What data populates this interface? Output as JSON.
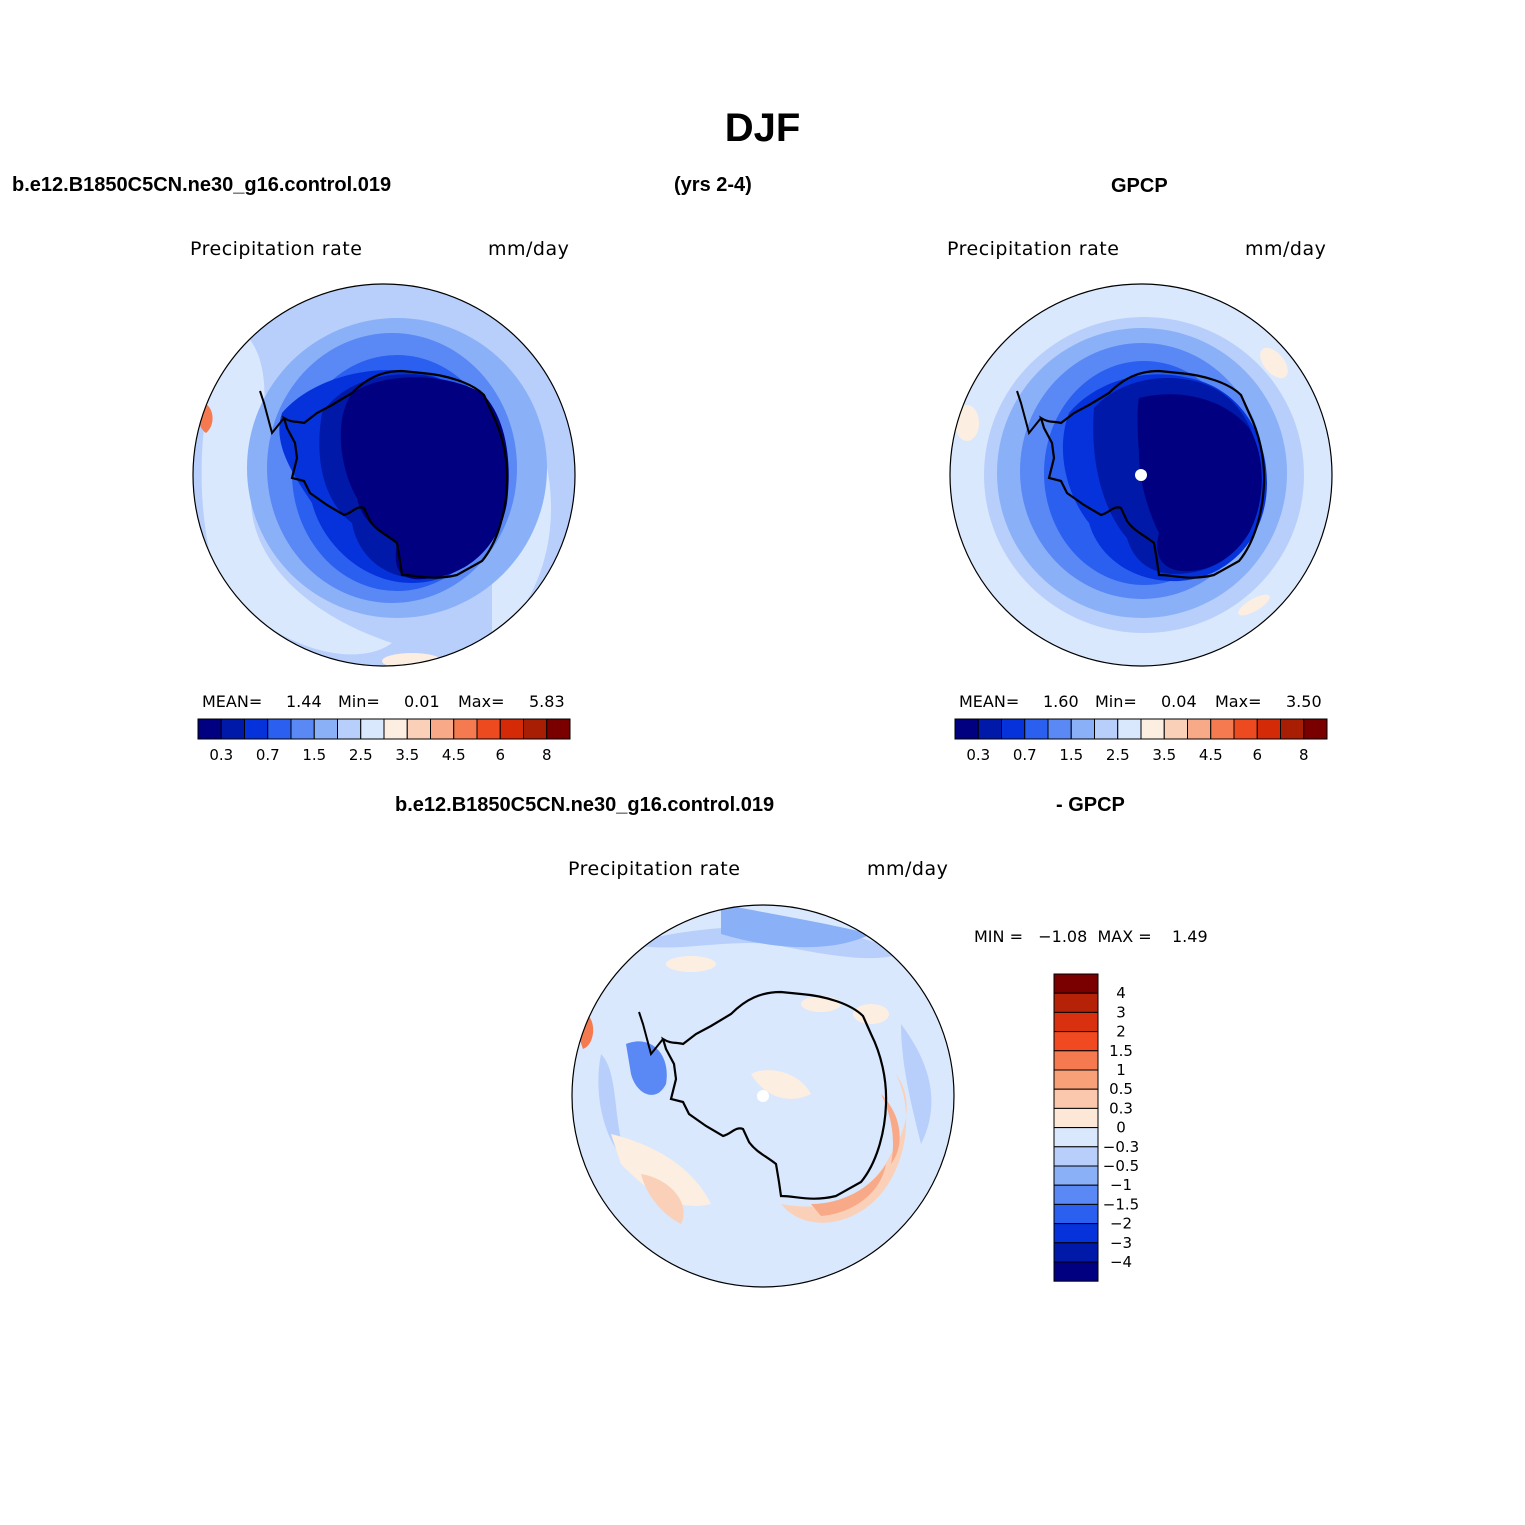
{
  "figure": {
    "title": "DJF"
  },
  "top_row": {
    "case_name": "b.e12.B1850C5CN.ne30_g16.control.019",
    "years": "(yrs 2-4)",
    "obs_name": "GPCP"
  },
  "panels": {
    "model": {
      "variable": "Precipitation rate",
      "units": "mm/day",
      "mean_label": "MEAN=",
      "mean": "1.44",
      "min_label": "Min=",
      "min": "0.01",
      "max_label": "Max=",
      "max": "5.83"
    },
    "obs": {
      "variable": "Precipitation rate",
      "units": "mm/day",
      "mean_label": "MEAN=",
      "mean": "1.60",
      "min_label": "Min=",
      "min": "0.04",
      "max_label": "Max=",
      "max": "3.50"
    },
    "diff": {
      "case_name": "b.e12.B1850C5CN.ne30_g16.control.019",
      "minus_obs": "- GPCP",
      "variable": "Precipitation rate",
      "units": "mm/day",
      "minmax_text": "MIN =   −1.08  MAX =    1.49"
    }
  },
  "chart_data": [
    {
      "type": "heatmap",
      "projection": "south-polar-stereographic",
      "colorbar": {
        "orientation": "horizontal",
        "levels": [
          0.2,
          0.3,
          0.5,
          0.7,
          1,
          1.5,
          2,
          2.5,
          3,
          3.5,
          4,
          4.5,
          5,
          6,
          7,
          8
        ],
        "tick_labels": [
          "0.3",
          "0.7",
          "1.5",
          "2.5",
          "3.5",
          "4.5",
          "6",
          "8"
        ],
        "colors": [
          "#000080",
          "#0019a8",
          "#0532da",
          "#2a5ff0",
          "#5a88f5",
          "#8ab0f8",
          "#b8cffb",
          "#d9e8fd",
          "#fdeee2",
          "#fbd0b8",
          "#f8aa88",
          "#f57a50",
          "#ee4a20",
          "#d42a08",
          "#a81e05",
          "#7a0000"
        ]
      }
    },
    {
      "type": "heatmap",
      "projection": "south-polar-stereographic",
      "colorbar": {
        "orientation": "horizontal",
        "levels": [
          0.2,
          0.3,
          0.5,
          0.7,
          1,
          1.5,
          2,
          2.5,
          3,
          3.5,
          4,
          4.5,
          5,
          6,
          7,
          8
        ],
        "tick_labels": [
          "0.3",
          "0.7",
          "1.5",
          "2.5",
          "3.5",
          "4.5",
          "6",
          "8"
        ],
        "colors": [
          "#000080",
          "#0019a8",
          "#0532da",
          "#2a5ff0",
          "#5a88f5",
          "#8ab0f8",
          "#b8cffb",
          "#d9e8fd",
          "#fdeee2",
          "#fbd0b8",
          "#f8aa88",
          "#f57a50",
          "#ee4a20",
          "#d42a08",
          "#a81e05",
          "#7a0000"
        ]
      }
    },
    {
      "type": "heatmap",
      "projection": "south-polar-stereographic",
      "colorbar": {
        "orientation": "vertical",
        "tick_labels": [
          "4",
          "3",
          "2",
          "1.5",
          "1",
          "0.5",
          "0.3",
          "0",
          "−0.3",
          "−0.5",
          "−1",
          "−1.5",
          "−2",
          "−3",
          "−4"
        ],
        "colors": [
          "#7a0000",
          "#b52208",
          "#d93010",
          "#f24a20",
          "#f57a50",
          "#f8a078",
          "#fbc8ae",
          "#fde8d8",
          "#d9e8fd",
          "#b8cffb",
          "#8ab0f8",
          "#5a88f5",
          "#2a5ff0",
          "#0532da",
          "#0019a8",
          "#000080"
        ]
      }
    }
  ]
}
